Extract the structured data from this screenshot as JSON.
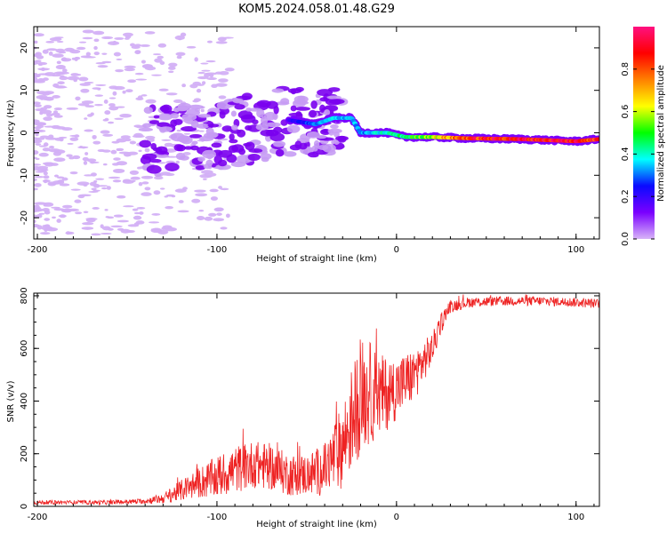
{
  "title": "KOM5.2024.058.01.48.G29",
  "chart_data": [
    {
      "type": "heatmap",
      "title": "",
      "xlabel": "Height of straight line (km)",
      "ylabel": "Frequency (Hz)",
      "xlim": [
        -202,
        113
      ],
      "ylim": [
        -25,
        25
      ],
      "xticks": [
        -200,
        -100,
        0,
        100
      ],
      "yticks": [
        -20,
        -10,
        0,
        10,
        20
      ],
      "colorbar": {
        "label": "Normalized spectral amplitude",
        "range": [
          0,
          1
        ],
        "ticks": [
          "0.0",
          "0.2",
          "0.4",
          "0.6",
          "0.8"
        ],
        "colormap": [
          "#d8b4f8",
          "#7a00ff",
          "#0a0aff",
          "#00ffff",
          "#00ff00",
          "#ffff00",
          "#ff8000",
          "#ff0000",
          "#ff1080"
        ]
      },
      "ridge": {
        "description_points": [
          {
            "x": -130,
            "y": -2,
            "amp": 0.15
          },
          {
            "x": -100,
            "y": -1,
            "amp": 0.15
          },
          {
            "x": -80,
            "y": 1,
            "amp": 0.15
          },
          {
            "x": -60,
            "y": 3,
            "amp": 0.18
          },
          {
            "x": -45,
            "y": 2,
            "amp": 0.3
          },
          {
            "x": -35,
            "y": 3.5,
            "amp": 0.35
          },
          {
            "x": -25,
            "y": 3.5,
            "amp": 0.35
          },
          {
            "x": -20,
            "y": 0,
            "amp": 0.3
          },
          {
            "x": -5,
            "y": 0,
            "amp": 0.4
          },
          {
            "x": 5,
            "y": -1,
            "amp": 0.45
          },
          {
            "x": 20,
            "y": -1,
            "amp": 0.6
          },
          {
            "x": 40,
            "y": -1.3,
            "amp": 0.85
          },
          {
            "x": 70,
            "y": -1.5,
            "amp": 0.9
          },
          {
            "x": 100,
            "y": -2,
            "amp": 0.9
          },
          {
            "x": 113,
            "y": -1.5,
            "amp": 0.85
          }
        ]
      }
    },
    {
      "type": "line",
      "title": "",
      "xlabel": "Height of straight line (km)",
      "ylabel": "SNR (v/v)",
      "xlim": [
        -202,
        113
      ],
      "ylim": [
        0,
        810
      ],
      "xticks": [
        -200,
        -100,
        0,
        100
      ],
      "yticks": [
        0,
        200,
        400,
        600,
        800
      ],
      "series": [
        {
          "color": "#ee2222",
          "envelope": {
            "x": [
              -202,
              -160,
              -140,
              -130,
              -120,
              -110,
              -100,
              -90,
              -80,
              -70,
              -60,
              -50,
              -40,
              -30,
              -25,
              -20,
              -15,
              -10,
              -5,
              0,
              10,
              20,
              25,
              30,
              40,
              60,
              80,
              100,
              113
            ],
            "mean": [
              15,
              15,
              20,
              30,
              60,
              90,
              110,
              140,
              160,
              150,
              120,
              120,
              140,
              230,
              330,
              420,
              430,
              420,
              430,
              450,
              500,
              600,
              700,
              760,
              775,
              780,
              780,
              775,
              770
            ],
            "spread": [
              8,
              8,
              10,
              20,
              40,
              60,
              80,
              90,
              90,
              90,
              80,
              80,
              100,
              160,
              200,
              220,
              200,
              160,
              140,
              120,
              100,
              60,
              40,
              25,
              20,
              18,
              18,
              18,
              18
            ]
          }
        }
      ]
    }
  ]
}
